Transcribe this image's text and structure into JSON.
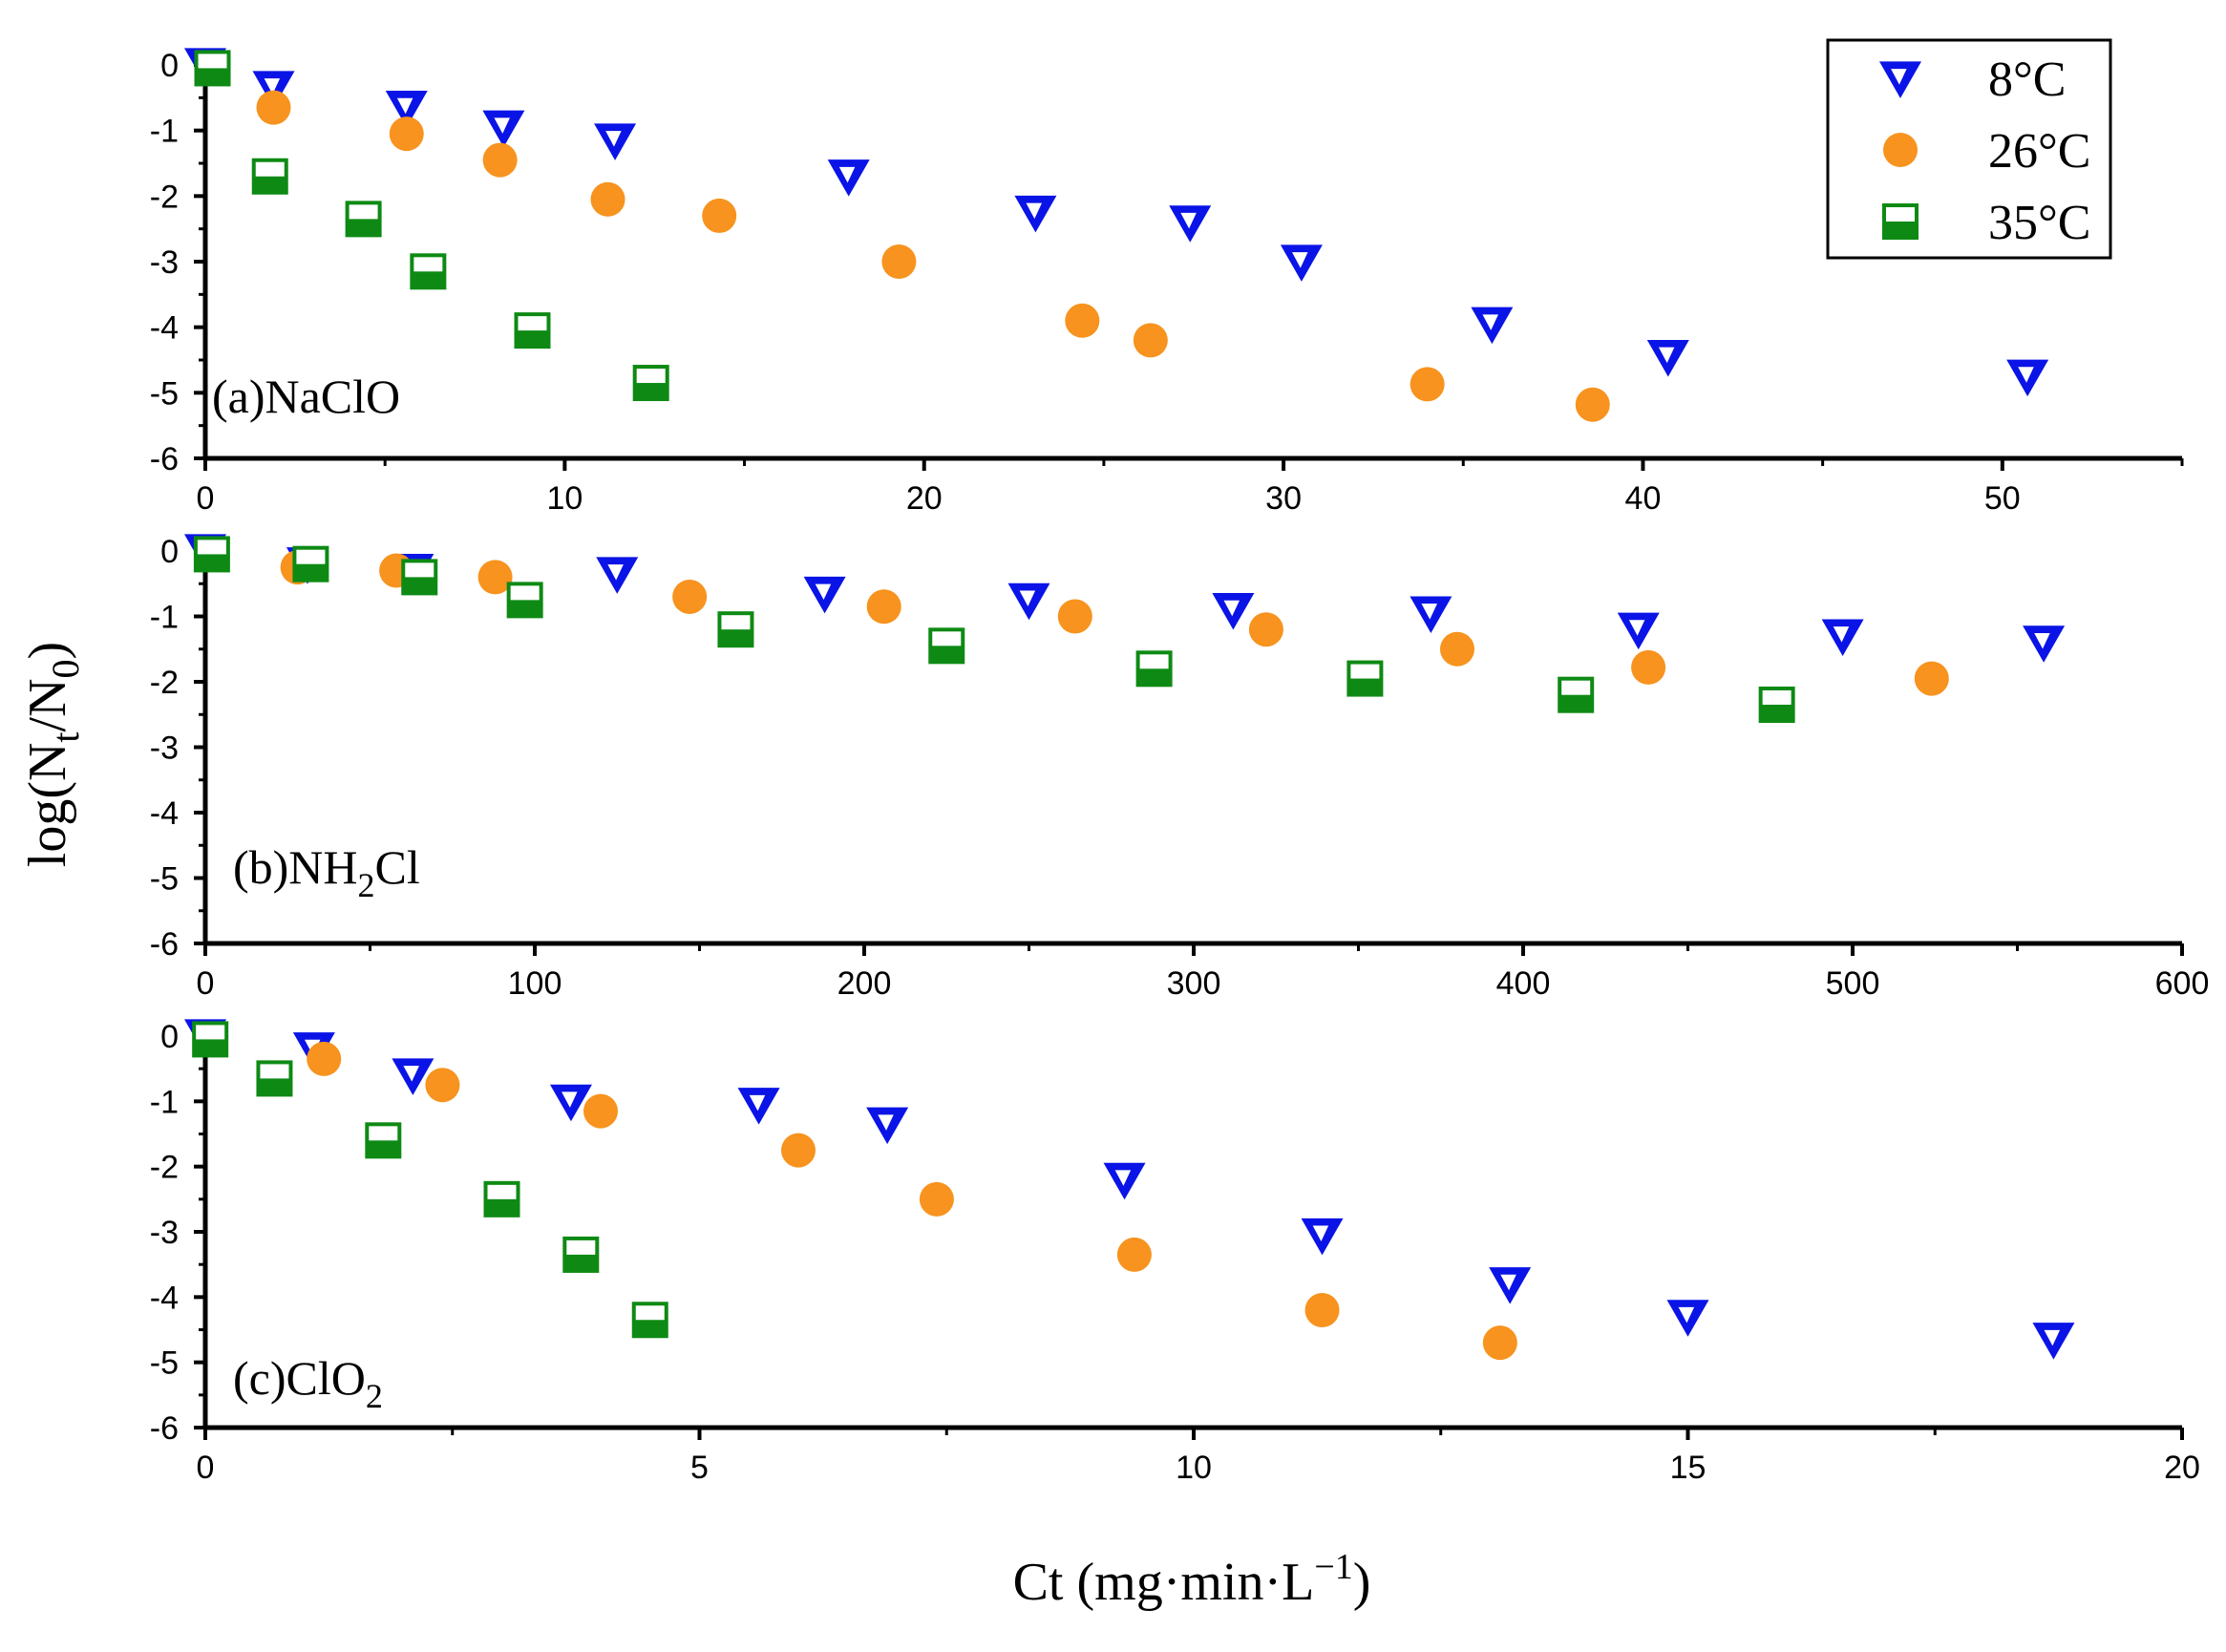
{
  "chart_data": {
    "type": "scatter",
    "ylabel_base": "log(N",
    "ylabel_sub1": "t",
    "ylabel_mid": "/N",
    "ylabel_sub2": "0",
    "ylabel_end": ")",
    "xlabel_main": "Ct (mg·min·L",
    "xlabel_sup": "−1",
    "xlabel_end": ")",
    "legend": [
      {
        "name": "8°C",
        "marker": "triangle-down",
        "color": "#0a14e6"
      },
      {
        "name": "26°C",
        "marker": "circle",
        "color": "#f7931e"
      },
      {
        "name": "35°C",
        "marker": "square-half",
        "color": "#0e8a14"
      }
    ],
    "panels": [
      {
        "label_pre": "(a)NaClO",
        "label_sub": "",
        "label_post": "",
        "xlim": [
          0,
          55
        ],
        "xticks": [
          0,
          10,
          20,
          30,
          40,
          50
        ],
        "ylim": [
          -6,
          0
        ],
        "yticks": [
          0,
          -1,
          -2,
          -3,
          -4,
          -5,
          -6
        ],
        "series": [
          {
            "name": "8°C",
            "x": [
              0,
              1.9,
              5.6,
              8.3,
              11.4,
              17.9,
              23.1,
              27.4,
              30.5,
              35.8,
              40.7,
              50.7
            ],
            "y": [
              0,
              -0.35,
              -0.65,
              -0.95,
              -1.15,
              -1.7,
              -2.25,
              -2.4,
              -3.0,
              -3.95,
              -4.45,
              -4.75
            ]
          },
          {
            "name": "26°C",
            "x": [
              1.9,
              5.6,
              8.2,
              11.2,
              14.3,
              19.3,
              24.4,
              26.3,
              34.0,
              38.6
            ],
            "y": [
              -0.65,
              -1.05,
              -1.45,
              -2.05,
              -2.3,
              -3.0,
              -3.9,
              -4.2,
              -4.87,
              -5.18
            ]
          },
          {
            "name": "35°C",
            "x": [
              0.2,
              1.8,
              4.4,
              6.2,
              9.1,
              12.4
            ],
            "y": [
              -0.05,
              -1.7,
              -2.35,
              -3.15,
              -4.05,
              -4.85
            ]
          }
        ]
      },
      {
        "label_pre": "(b)NH",
        "label_sub": "2",
        "label_post": "Cl",
        "xlim": [
          0,
          600
        ],
        "xticks": [
          0,
          100,
          200,
          300,
          400,
          500,
          600
        ],
        "ylim": [
          -6,
          0
        ],
        "yticks": [
          0,
          -1,
          -2,
          -3,
          -4,
          -5,
          -6
        ],
        "series": [
          {
            "name": "8°C",
            "x": [
              0,
              31,
              63,
              125,
              188,
              250,
              312,
              372,
              435,
              497,
              558
            ],
            "y": [
              0,
              -0.2,
              -0.3,
              -0.35,
              -0.65,
              -0.75,
              -0.9,
              -0.95,
              -1.2,
              -1.3,
              -1.4
            ]
          },
          {
            "name": "26°C",
            "x": [
              28,
              58,
              88,
              147,
              206,
              264,
              322,
              380,
              438,
              524
            ],
            "y": [
              -0.25,
              -0.3,
              -0.4,
              -0.7,
              -0.85,
              -1.0,
              -1.2,
              -1.5,
              -1.78,
              -1.95
            ]
          },
          {
            "name": "35°C",
            "x": [
              2,
              32,
              65,
              97,
              161,
              225,
              288,
              352,
              416,
              477
            ],
            "y": [
              -0.05,
              -0.2,
              -0.4,
              -0.75,
              -1.2,
              -1.45,
              -1.8,
              -1.95,
              -2.2,
              -2.35
            ]
          }
        ]
      },
      {
        "label_pre": "(c)ClO",
        "label_sub": "2",
        "label_post": "",
        "xlim": [
          0,
          20
        ],
        "xticks": [
          0,
          5,
          10,
          15,
          20
        ],
        "ylim": [
          -6,
          0
        ],
        "yticks": [
          0,
          -1,
          -2,
          -3,
          -4,
          -5,
          -6
        ],
        "series": [
          {
            "name": "8°C",
            "x": [
              0,
              1.1,
              2.1,
              3.7,
              5.6,
              6.9,
              9.3,
              11.3,
              13.2,
              15.0,
              18.7
            ],
            "y": [
              0,
              -0.2,
              -0.6,
              -1.0,
              -1.05,
              -1.35,
              -2.2,
              -3.05,
              -3.8,
              -4.3,
              -4.65
            ]
          },
          {
            "name": "26°C",
            "x": [
              1.2,
              2.4,
              4.0,
              6.0,
              7.4,
              9.4,
              11.3,
              13.1
            ],
            "y": [
              -0.35,
              -0.75,
              -1.15,
              -1.75,
              -2.5,
              -3.35,
              -4.2,
              -4.7
            ]
          },
          {
            "name": "35°C",
            "x": [
              0.05,
              0.7,
              1.8,
              3.0,
              3.8,
              4.5
            ],
            "y": [
              -0.05,
              -0.65,
              -1.6,
              -2.5,
              -3.35,
              -4.35
            ]
          }
        ]
      }
    ]
  }
}
